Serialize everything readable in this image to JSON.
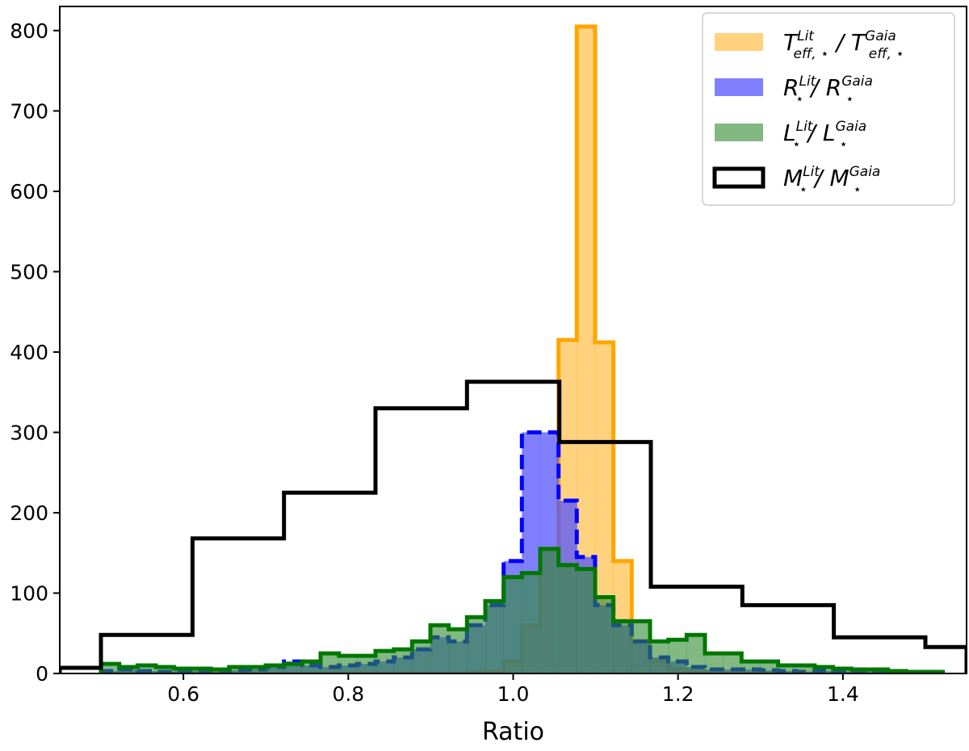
{
  "chart_data": {
    "type": "histogram",
    "xlabel": "Ratio",
    "ylabel": "",
    "xlim": [
      0.45,
      1.55
    ],
    "ylim": [
      0,
      830
    ],
    "xticks": [
      0.6,
      0.8,
      1.0,
      1.2,
      1.4
    ],
    "xtick_labels": [
      "0.6",
      "0.8",
      "1.0",
      "1.2",
      "1.4"
    ],
    "yticks": [
      0,
      100,
      200,
      300,
      400,
      500,
      600,
      700,
      800
    ],
    "ytick_labels": [
      "0",
      "100",
      "200",
      "300",
      "400",
      "500",
      "600",
      "700",
      "800"
    ],
    "legend_position": "top-right",
    "series": [
      {
        "key": "teff",
        "name": "T_eff,⋆^Lit / T_eff,⋆^Gaia",
        "legend": {
          "base1": "T",
          "sup1": "Lit",
          "sub1": "eff, ⋆",
          "sep": " / ",
          "base2": "T",
          "sup2": "Gaia",
          "sub2": "eff, ⋆"
        },
        "style": "filled",
        "fill": "#ffa500",
        "fill_opacity": 0.5,
        "edge": "#ffa500",
        "dash": false,
        "bin_start": 0.5,
        "bin_width": 0.0222,
        "values": [
          0,
          0,
          0,
          0,
          0,
          0,
          0,
          0,
          0,
          0,
          0,
          0,
          0,
          0,
          0,
          0,
          0,
          0,
          0,
          0,
          1,
          2,
          15,
          60,
          155,
          415,
          805,
          412,
          140,
          40,
          15,
          5,
          2,
          1,
          0,
          0,
          0,
          0,
          0,
          0,
          0,
          0,
          0,
          0,
          0,
          0
        ]
      },
      {
        "key": "r",
        "name": "R⋆^Lit / R⋆^Gaia",
        "legend": {
          "base1": "R",
          "sup1": "Lit",
          "sub1": "⋆",
          "sep": " / ",
          "base2": "R",
          "sup2": "Gaia",
          "sub2": "⋆"
        },
        "style": "filled",
        "fill": "#5555ff",
        "fill_opacity": 0.75,
        "edge": "#0000ff",
        "dash": true,
        "bin_start": 0.5,
        "bin_width": 0.0222,
        "values": [
          3,
          5,
          3,
          2,
          3,
          3,
          2,
          4,
          5,
          8,
          15,
          10,
          8,
          10,
          12,
          15,
          20,
          30,
          45,
          40,
          60,
          85,
          140,
          300,
          300,
          215,
          145,
          85,
          60,
          40,
          20,
          15,
          8,
          5,
          5,
          5,
          4,
          3,
          2,
          3,
          2,
          3,
          2,
          2,
          1,
          1
        ]
      },
      {
        "key": "l",
        "name": "L⋆^Lit / L⋆^Gaia",
        "legend": {
          "base1": "L",
          "sup1": "Lit",
          "sub1": "⋆",
          "sep": " / ",
          "base2": "L",
          "sup2": "Gaia",
          "sub2": "⋆"
        },
        "style": "filled",
        "fill": "#2e8b2e",
        "fill_opacity": 0.6,
        "edge": "#007700",
        "dash": false,
        "bin_start": 0.5,
        "bin_width": 0.0222,
        "values": [
          12,
          8,
          10,
          8,
          6,
          6,
          5,
          8,
          8,
          10,
          12,
          15,
          25,
          22,
          22,
          28,
          30,
          40,
          60,
          55,
          70,
          90,
          120,
          125,
          155,
          135,
          130,
          95,
          65,
          65,
          40,
          42,
          48,
          25,
          25,
          15,
          15,
          10,
          10,
          8,
          6,
          5,
          5,
          3,
          2,
          2
        ]
      },
      {
        "key": "m",
        "name": "M⋆^Lit / M⋆^Gaia",
        "legend": {
          "base1": "M",
          "sup1": "Lit",
          "sub1": "⋆",
          "sep": " / ",
          "base2": "M",
          "sup2": "Gaia",
          "sub2": "⋆"
        },
        "style": "step",
        "fill": "none",
        "edge": "#000000",
        "dash": false,
        "edges": [
          0.45,
          0.5,
          0.611,
          0.722,
          0.833,
          0.944,
          1.056,
          1.167,
          1.278,
          1.389,
          1.5,
          1.55
        ],
        "values": [
          7,
          48,
          168,
          225,
          330,
          363,
          288,
          108,
          85,
          45,
          33
        ]
      }
    ]
  }
}
